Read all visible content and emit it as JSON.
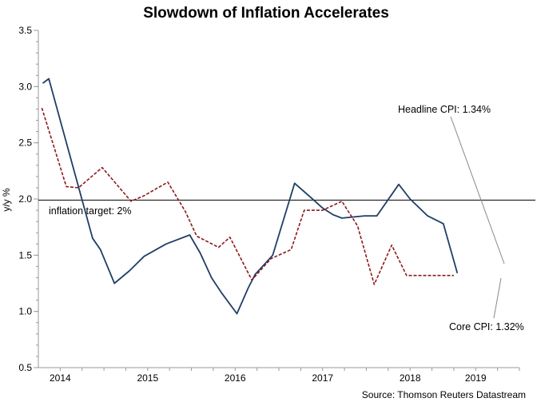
{
  "chart_data": {
    "type": "line",
    "title": "Slowdown of Inflation Accelerates",
    "ylabel": "y/y %",
    "xlabel": "",
    "ylim": [
      0.5,
      3.5
    ],
    "yticks": [
      "3.5",
      "3.0",
      "2.5",
      "2.0",
      "1.5",
      "1.0",
      "0.5"
    ],
    "ytick_values": [
      3.5,
      3.0,
      2.5,
      2.0,
      1.5,
      1.0,
      0.5
    ],
    "xlim": [
      2013.75,
      2019.25
    ],
    "xticks": [
      {
        "label": "2014",
        "x": 2014.0
      },
      {
        "label": "2015",
        "x": 2015.0
      },
      {
        "label": "2016",
        "x": 2016.0
      },
      {
        "label": "2017",
        "x": 2017.0
      },
      {
        "label": "2018",
        "x": 2018.0
      },
      {
        "label": "2019",
        "x": 2018.75
      }
    ],
    "series": [
      {
        "name": "Headline CPI",
        "color": "#1f3f66",
        "style": "solid",
        "x": [
          2013.8,
          2013.87,
          2014.37,
          2014.46,
          2014.62,
          2014.79,
          2014.96,
          2015.21,
          2015.48,
          2015.6,
          2015.73,
          2015.84,
          2016.02,
          2016.15,
          2016.23,
          2016.43,
          2016.68,
          2016.87,
          2017.0,
          2017.12,
          2017.22,
          2017.48,
          2017.62,
          2017.87,
          2018.0,
          2018.2,
          2018.38,
          2018.54
        ],
        "values": [
          3.03,
          3.07,
          1.65,
          1.55,
          1.25,
          1.36,
          1.49,
          1.6,
          1.68,
          1.52,
          1.3,
          1.17,
          0.98,
          1.21,
          1.33,
          1.5,
          2.14,
          2.01,
          1.92,
          1.86,
          1.83,
          1.85,
          1.85,
          2.13,
          2.0,
          1.85,
          1.78,
          1.34
        ]
      },
      {
        "name": "Core CPI",
        "color": "#8b1a1a",
        "style": "dashed",
        "x": [
          2013.79,
          2014.07,
          2014.21,
          2014.48,
          2014.81,
          2014.96,
          2015.23,
          2015.43,
          2015.56,
          2015.81,
          2015.94,
          2016.19,
          2016.41,
          2016.64,
          2016.79,
          2017.0,
          2017.22,
          2017.4,
          2017.59,
          2017.79,
          2017.96,
          2018.1,
          2018.3,
          2018.5
        ],
        "values": [
          2.81,
          2.11,
          2.1,
          2.28,
          1.98,
          2.03,
          2.15,
          1.89,
          1.67,
          1.57,
          1.66,
          1.28,
          1.47,
          1.55,
          1.9,
          1.9,
          1.98,
          1.76,
          1.24,
          1.59,
          1.32,
          1.32,
          1.32,
          1.32
        ]
      }
    ],
    "reference_line": {
      "label": "inflation target: 2%",
      "value": 1.99
    },
    "annotations": [
      {
        "text": "Headline CPI: 1.34%",
        "points_to": "Headline CPI"
      },
      {
        "text": "Core CPI: 1.32%",
        "points_to": "Core CPI"
      }
    ],
    "source": "Source: Thomson Reuters Datastream",
    "grid": false,
    "legend": "none",
    "colors": {
      "headline": "#1f3f66",
      "core": "#8b1a1a",
      "axis": "#999999",
      "target": "#000000",
      "leader": "#888888"
    }
  }
}
